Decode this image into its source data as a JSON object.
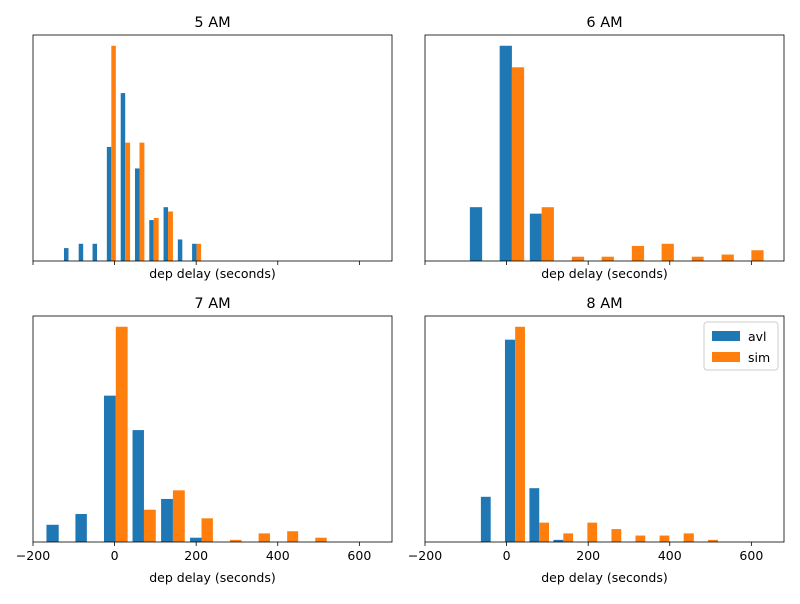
{
  "colors": {
    "avl": "#1f77b4",
    "sim": "#ff7f0e"
  },
  "legend": {
    "placement": "top-right",
    "panel": 3,
    "entries": [
      "avl",
      "sim"
    ]
  },
  "chart_data": [
    {
      "type": "bar",
      "title": "5 AM",
      "xlabel": "dep delay (seconds)",
      "ylabel": "",
      "xlim": [
        -200,
        680
      ],
      "ylim": [
        0,
        1.05
      ],
      "xticks": [
        -200,
        0,
        200,
        400,
        600
      ],
      "xtick_labels_visible": false,
      "y_axis_visible": false,
      "series": [
        {
          "name": "avl",
          "bars": [
            {
              "x0": -124,
              "x1": -113,
              "y": 0.06
            },
            {
              "x0": -88,
              "x1": -77,
              "y": 0.08
            },
            {
              "x0": -54,
              "x1": -43,
              "y": 0.08
            },
            {
              "x0": -19,
              "x1": -8,
              "y": 0.53
            },
            {
              "x0": 15,
              "x1": 26,
              "y": 0.78
            },
            {
              "x0": 50,
              "x1": 61,
              "y": 0.43
            },
            {
              "x0": 85,
              "x1": 96,
              "y": 0.19
            },
            {
              "x0": 120,
              "x1": 131,
              "y": 0.25
            },
            {
              "x0": 155,
              "x1": 166,
              "y": 0.1
            },
            {
              "x0": 190,
              "x1": 201,
              "y": 0.08
            }
          ]
        },
        {
          "name": "sim",
          "bars": [
            {
              "x0": -8,
              "x1": 3,
              "y": 1.0
            },
            {
              "x0": 26,
              "x1": 38,
              "y": 0.55
            },
            {
              "x0": 61,
              "x1": 73,
              "y": 0.55
            },
            {
              "x0": 96,
              "x1": 108,
              "y": 0.2
            },
            {
              "x0": 131,
              "x1": 143,
              "y": 0.23
            },
            {
              "x0": 201,
              "x1": 212,
              "y": 0.08
            }
          ]
        }
      ]
    },
    {
      "type": "bar",
      "title": "6 AM",
      "xlabel": "dep delay (seconds)",
      "ylabel": "",
      "xlim": [
        -200,
        680
      ],
      "ylim": [
        0,
        1.05
      ],
      "xticks": [
        -200,
        0,
        200,
        400,
        600
      ],
      "xtick_labels_visible": false,
      "y_axis_visible": false,
      "series": [
        {
          "name": "avl",
          "bars": [
            {
              "x0": -90,
              "x1": -60,
              "y": 0.25
            },
            {
              "x0": -17,
              "x1": 13,
              "y": 1.0
            },
            {
              "x0": 57,
              "x1": 86,
              "y": 0.22
            }
          ]
        },
        {
          "name": "sim",
          "bars": [
            {
              "x0": 13,
              "x1": 43,
              "y": 0.9
            },
            {
              "x0": 86,
              "x1": 116,
              "y": 0.25
            },
            {
              "x0": 160,
              "x1": 190,
              "y": 0.02
            },
            {
              "x0": 233,
              "x1": 263,
              "y": 0.02
            },
            {
              "x0": 307,
              "x1": 337,
              "y": 0.07
            },
            {
              "x0": 380,
              "x1": 410,
              "y": 0.08
            },
            {
              "x0": 454,
              "x1": 483,
              "y": 0.02
            },
            {
              "x0": 527,
              "x1": 557,
              "y": 0.03
            },
            {
              "x0": 600,
              "x1": 630,
              "y": 0.05
            }
          ]
        }
      ]
    },
    {
      "type": "bar",
      "title": "7 AM",
      "xlabel": "dep delay (seconds)",
      "ylabel": "",
      "xlim": [
        -200,
        680
      ],
      "ylim": [
        0,
        1.05
      ],
      "xticks": [
        -200,
        0,
        200,
        400,
        600
      ],
      "xtick_labels": [
        "−200",
        "0",
        "200",
        "400",
        "600"
      ],
      "xtick_labels_visible": true,
      "y_axis_visible": false,
      "series": [
        {
          "name": "avl",
          "bars": [
            {
              "x0": -167,
              "x1": -137,
              "y": 0.08
            },
            {
              "x0": -96,
              "x1": -68,
              "y": 0.13
            },
            {
              "x0": -26,
              "x1": 3,
              "y": 0.68
            },
            {
              "x0": 44,
              "x1": 72,
              "y": 0.52
            },
            {
              "x0": 114,
              "x1": 143,
              "y": 0.2
            },
            {
              "x0": 185,
              "x1": 213,
              "y": 0.02
            }
          ]
        },
        {
          "name": "sim",
          "bars": [
            {
              "x0": 3,
              "x1": 32,
              "y": 1.0
            },
            {
              "x0": 72,
              "x1": 101,
              "y": 0.15
            },
            {
              "x0": 143,
              "x1": 172,
              "y": 0.24
            },
            {
              "x0": 213,
              "x1": 241,
              "y": 0.11
            },
            {
              "x0": 283,
              "x1": 311,
              "y": 0.01
            },
            {
              "x0": 353,
              "x1": 381,
              "y": 0.04
            },
            {
              "x0": 423,
              "x1": 450,
              "y": 0.05
            },
            {
              "x0": 492,
              "x1": 520,
              "y": 0.02
            }
          ]
        }
      ]
    },
    {
      "type": "bar",
      "title": "8 AM",
      "xlabel": "dep delay (seconds)",
      "ylabel": "",
      "xlim": [
        -200,
        680
      ],
      "ylim": [
        0,
        1.05
      ],
      "xticks": [
        -200,
        0,
        200,
        400,
        600
      ],
      "xtick_labels": [
        "−200",
        "0",
        "200",
        "400",
        "600"
      ],
      "xtick_labels_visible": true,
      "y_axis_visible": false,
      "series": [
        {
          "name": "avl",
          "bars": [
            {
              "x0": -63,
              "x1": -39,
              "y": 0.21
            },
            {
              "x0": -4,
              "x1": 21,
              "y": 0.94
            },
            {
              "x0": 56,
              "x1": 80,
              "y": 0.25
            },
            {
              "x0": 115,
              "x1": 139,
              "y": 0.01
            }
          ]
        },
        {
          "name": "sim",
          "bars": [
            {
              "x0": 21,
              "x1": 45,
              "y": 1.0
            },
            {
              "x0": 80,
              "x1": 104,
              "y": 0.09
            },
            {
              "x0": 139,
              "x1": 163,
              "y": 0.04
            },
            {
              "x0": 198,
              "x1": 222,
              "y": 0.09
            },
            {
              "x0": 257,
              "x1": 281,
              "y": 0.06
            },
            {
              "x0": 316,
              "x1": 340,
              "y": 0.03
            },
            {
              "x0": 375,
              "x1": 399,
              "y": 0.03
            },
            {
              "x0": 434,
              "x1": 459,
              "y": 0.04
            },
            {
              "x0": 494,
              "x1": 518,
              "y": 0.01
            }
          ]
        }
      ]
    }
  ]
}
